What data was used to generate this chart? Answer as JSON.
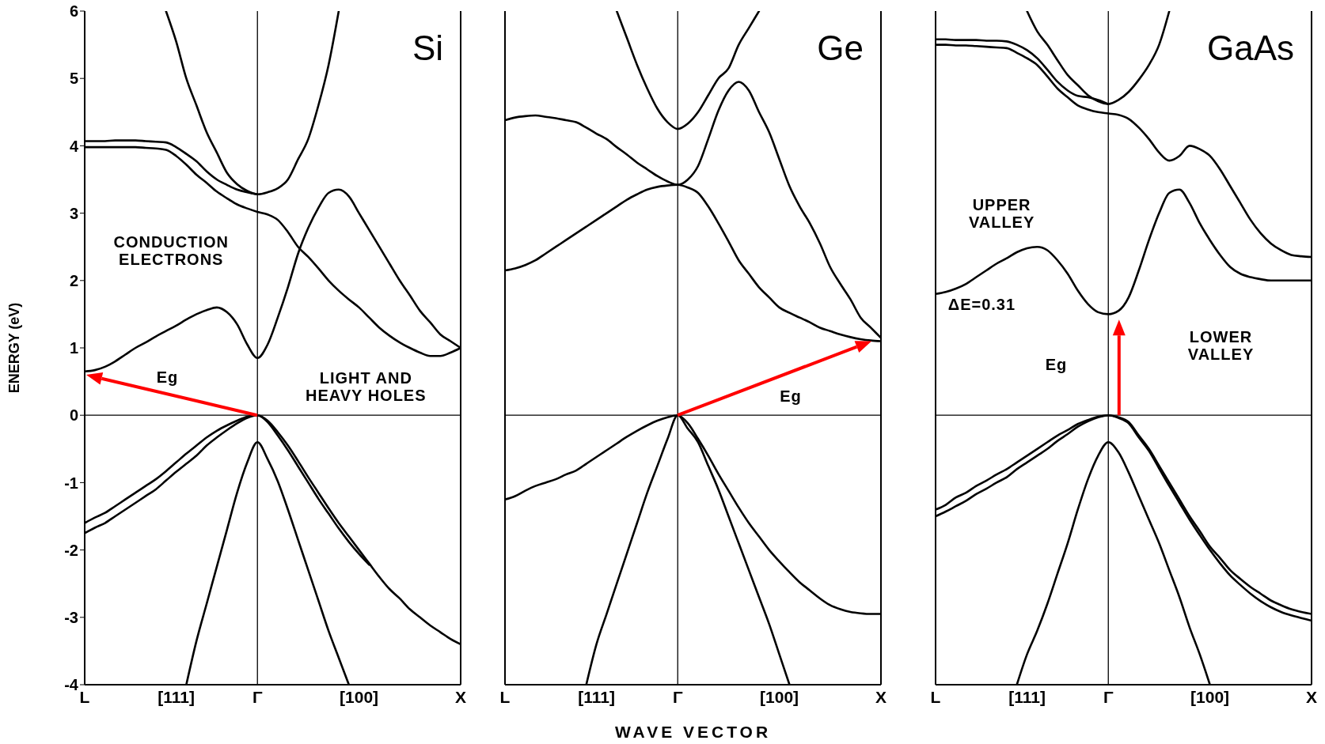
{
  "chart_data": [
    {
      "type": "line",
      "title": "Si",
      "ylabel": "ENERGY (eV)",
      "ylim": [
        -4,
        6
      ],
      "tick_labels": "xy",
      "categories": [
        "L",
        null,
        null,
        null,
        null,
        null,
        null,
        null,
        null,
        "[111]",
        null,
        null,
        null,
        null,
        null,
        null,
        null,
        "Γ",
        null,
        null,
        null,
        null,
        null,
        null,
        null,
        null,
        null,
        "[100]",
        null,
        null,
        null,
        null,
        null,
        null,
        null,
        null,
        null,
        "X"
      ],
      "yticks": [
        -4,
        -3,
        -2,
        -1,
        0,
        1,
        2,
        3,
        4,
        5,
        6
      ],
      "ref_lines": [
        {
          "axis": "y",
          "value": 0,
          "color": "#000000"
        },
        {
          "axis": "x",
          "value": "Γ",
          "color": "#000000"
        }
      ],
      "annotations": [
        "CONDUCTION\nELECTRONS",
        "Eg",
        "LIGHT AND\nHEAVY HOLES"
      ],
      "series": [
        {
          "color": "#000000",
          "values": [
            null,
            null,
            null,
            null,
            null,
            null,
            null,
            null,
            6,
            5.55,
            5.0,
            4.6,
            4.2,
            3.9,
            3.6,
            3.43,
            3.33,
            3.28,
            3.31,
            3.37,
            3.5,
            3.8,
            4.1,
            4.6,
            5.2,
            6,
            null,
            null,
            null,
            null,
            null,
            null,
            null,
            null,
            null,
            null,
            null,
            null
          ]
        },
        {
          "color": "#000000",
          "values": [
            4.07,
            4.07,
            4.07,
            4.08,
            4.08,
            4.08,
            4.07,
            4.06,
            4.05,
            3.98,
            3.88,
            3.77,
            3.62,
            3.5,
            3.42,
            3.35,
            3.31,
            3.28,
            null,
            null,
            null,
            null,
            null,
            null,
            null,
            null,
            null,
            null,
            null,
            null,
            null,
            null,
            null,
            null,
            null,
            null,
            null,
            null
          ]
        },
        {
          "color": "#000000",
          "values": [
            3.98,
            3.98,
            3.98,
            3.98,
            3.98,
            3.98,
            3.97,
            3.96,
            3.94,
            3.85,
            3.72,
            3.57,
            3.45,
            3.32,
            3.22,
            3.13,
            3.07,
            3.02,
            2.98,
            2.9,
            2.72,
            2.5,
            2.35,
            2.18,
            2.0,
            1.85,
            1.72,
            1.6,
            1.45,
            1.3,
            1.18,
            1.08,
            1.0,
            0.93,
            0.88,
            0.88,
            0.93,
            1.0
          ]
        },
        {
          "color": "#000000",
          "values": [
            0.65,
            0.67,
            0.72,
            0.8,
            0.9,
            1.0,
            1.08,
            1.17,
            1.25,
            1.33,
            1.42,
            1.5,
            1.56,
            1.6,
            1.53,
            1.35,
            1.05,
            0.85,
            1.05,
            1.45,
            1.9,
            2.4,
            2.78,
            3.08,
            3.3,
            3.35,
            3.25,
            3.0,
            2.75,
            2.5,
            2.25,
            2.0,
            1.78,
            1.55,
            1.38,
            1.2,
            1.1,
            1.0
          ]
        },
        {
          "color": "#000000",
          "values": [
            -1.6,
            -1.52,
            -1.45,
            -1.35,
            -1.25,
            -1.15,
            -1.05,
            -0.95,
            -0.83,
            -0.7,
            -0.57,
            -0.45,
            -0.33,
            -0.23,
            -0.15,
            -0.08,
            -0.02,
            0,
            -0.08,
            -0.25,
            -0.45,
            -0.68,
            -0.92,
            -1.15,
            -1.38,
            -1.6,
            -1.8,
            -2.0,
            -2.2,
            -2.4,
            -2.58,
            -2.72,
            -2.88,
            -3.0,
            -3.12,
            -3.22,
            -3.32,
            -3.4
          ]
        },
        {
          "color": "#000000",
          "values": [
            -1.75,
            -1.67,
            -1.6,
            -1.5,
            -1.4,
            -1.3,
            -1.2,
            -1.1,
            -0.97,
            -0.84,
            -0.72,
            -0.6,
            -0.45,
            -0.33,
            -0.22,
            -0.12,
            -0.04,
            0,
            -0.1,
            -0.3,
            -0.52,
            -0.76,
            -1.0,
            -1.24,
            -1.46,
            -1.68,
            -1.88,
            -2.06,
            -2.22,
            null,
            null,
            null,
            null,
            null,
            null,
            null,
            null,
            null
          ]
        },
        {
          "color": "#000000",
          "values": [
            null,
            null,
            null,
            null,
            null,
            null,
            null,
            null,
            null,
            null,
            -4,
            -3.35,
            -2.8,
            -2.25,
            -1.7,
            -1.15,
            -0.7,
            -0.4,
            -0.65,
            -0.98,
            -1.4,
            -1.85,
            -2.3,
            -2.75,
            -3.2,
            -3.6,
            -4,
            null,
            null,
            null,
            null,
            null,
            null,
            null,
            null,
            null,
            null,
            null
          ]
        }
      ]
    },
    {
      "type": "line",
      "title": "Ge",
      "xlabel": "WAVE VECTOR",
      "ylim": [
        -4,
        6
      ],
      "tick_labels": "x",
      "categories": [
        "L",
        null,
        null,
        null,
        null,
        null,
        null,
        null,
        null,
        "[111]",
        null,
        null,
        null,
        null,
        null,
        null,
        null,
        "Γ",
        null,
        null,
        null,
        null,
        null,
        null,
        null,
        null,
        null,
        "[100]",
        null,
        null,
        null,
        null,
        null,
        null,
        null,
        null,
        null,
        "X"
      ],
      "yticks": [
        -4,
        -3,
        -2,
        -1,
        0,
        1,
        2,
        3,
        4,
        5,
        6
      ],
      "ref_lines": [
        {
          "axis": "y",
          "value": 0,
          "color": "#000000"
        },
        {
          "axis": "x",
          "value": "Γ",
          "color": "#000000"
        }
      ],
      "annotations": [
        "Eg"
      ],
      "series": [
        {
          "color": "#000000",
          "values": [
            null,
            null,
            null,
            null,
            null,
            null,
            null,
            null,
            null,
            null,
            null,
            6,
            5.6,
            5.2,
            4.85,
            4.55,
            4.35,
            4.25,
            4.33,
            4.5,
            4.75,
            5.0,
            5.15,
            5.5,
            5.75,
            6,
            null,
            null,
            null,
            null,
            null,
            null,
            null,
            null,
            null,
            null,
            null,
            null
          ]
        },
        {
          "color": "#000000",
          "values": [
            4.38,
            4.42,
            4.44,
            4.45,
            4.43,
            4.41,
            4.38,
            4.35,
            4.27,
            4.18,
            4.1,
            3.98,
            3.87,
            3.75,
            3.65,
            3.55,
            3.47,
            3.42,
            3.5,
            3.7,
            4.1,
            4.52,
            4.82,
            4.95,
            4.82,
            4.5,
            4.2,
            3.8,
            3.4,
            3.1,
            2.85,
            2.55,
            2.2,
            1.95,
            1.72,
            1.45,
            1.3,
            1.15
          ]
        },
        {
          "color": "#000000",
          "values": [
            2.15,
            2.18,
            2.23,
            2.3,
            2.4,
            2.5,
            2.6,
            2.7,
            2.8,
            2.9,
            3.0,
            3.1,
            3.2,
            3.28,
            3.35,
            3.39,
            3.41,
            3.42,
            3.38,
            3.3,
            3.1,
            2.85,
            2.58,
            2.3,
            2.1,
            1.9,
            1.75,
            1.6,
            1.52,
            1.45,
            1.38,
            1.3,
            1.25,
            1.2,
            1.16,
            1.13,
            1.11,
            1.1
          ]
        },
        {
          "color": "#000000",
          "values": [
            -1.25,
            -1.2,
            -1.12,
            -1.05,
            -1.0,
            -0.95,
            -0.88,
            -0.82,
            -0.72,
            -0.62,
            -0.52,
            -0.42,
            -0.32,
            -0.23,
            -0.15,
            -0.08,
            -0.03,
            0,
            -0.12,
            -0.35,
            -0.6,
            -0.87,
            -1.12,
            -1.37,
            -1.6,
            -1.8,
            -2.0,
            -2.17,
            -2.33,
            -2.48,
            -2.6,
            -2.72,
            -2.82,
            -2.88,
            -2.92,
            -2.94,
            -2.95,
            -2.95
          ]
        },
        {
          "color": "#000000",
          "values": [
            null,
            null,
            null,
            null,
            null,
            null,
            null,
            null,
            -4,
            -3.4,
            -2.95,
            -2.5,
            -2.05,
            -1.6,
            -1.15,
            -0.75,
            -0.35,
            0,
            -0.2,
            -0.4,
            -0.75,
            -1.1,
            -1.5,
            -1.9,
            -2.3,
            -2.7,
            -3.1,
            -3.55,
            -4,
            null,
            null,
            null,
            null,
            null,
            null,
            null,
            null,
            null
          ]
        }
      ]
    },
    {
      "type": "line",
      "title": "GaAs",
      "ylim": [
        -4,
        6
      ],
      "tick_labels": "x",
      "categories": [
        "L",
        null,
        null,
        null,
        null,
        null,
        null,
        null,
        null,
        "[111]",
        null,
        null,
        null,
        null,
        null,
        null,
        null,
        "Γ",
        null,
        null,
        null,
        null,
        null,
        null,
        null,
        null,
        null,
        "[100]",
        null,
        null,
        null,
        null,
        null,
        null,
        null,
        null,
        null,
        "X"
      ],
      "yticks": [
        -4,
        -3,
        -2,
        -1,
        0,
        1,
        2,
        3,
        4,
        5,
        6
      ],
      "ref_lines": [
        {
          "axis": "y",
          "value": 0,
          "color": "#000000"
        },
        {
          "axis": "x",
          "value": "Γ",
          "color": "#000000"
        }
      ],
      "annotations": [
        "UPPER\nVALLEY",
        "ΔE=0.31",
        "Eg",
        "LOWER\nVALLEY"
      ],
      "series": [
        {
          "color": "#000000",
          "values": [
            null,
            null,
            null,
            null,
            null,
            null,
            null,
            null,
            null,
            6,
            5.7,
            5.5,
            5.27,
            5.05,
            4.9,
            4.75,
            4.66,
            4.62,
            4.68,
            4.8,
            4.98,
            5.2,
            5.5,
            6,
            null,
            null,
            null,
            null,
            null,
            null,
            null,
            null,
            null,
            null,
            null,
            null,
            null,
            null
          ]
        },
        {
          "color": "#000000",
          "values": [
            5.58,
            5.58,
            5.57,
            5.57,
            5.57,
            5.56,
            5.56,
            5.55,
            5.5,
            5.42,
            5.3,
            5.13,
            4.95,
            4.82,
            4.74,
            4.72,
            4.68,
            4.62,
            null,
            null,
            null,
            null,
            null,
            null,
            null,
            null,
            null,
            null,
            null,
            null,
            null,
            null,
            null,
            null,
            null,
            null,
            null,
            null
          ]
        },
        {
          "color": "#000000",
          "values": [
            5.5,
            5.5,
            5.49,
            5.49,
            5.48,
            5.47,
            5.46,
            5.45,
            5.38,
            5.3,
            5.2,
            5.03,
            4.85,
            4.72,
            4.6,
            4.54,
            4.5,
            4.48,
            4.46,
            4.4,
            4.27,
            4.1,
            3.9,
            3.78,
            3.85,
            4.0,
            3.95,
            3.85,
            3.65,
            3.4,
            3.15,
            2.9,
            2.7,
            2.55,
            2.45,
            2.38,
            2.36,
            2.35
          ]
        },
        {
          "color": "#000000",
          "values": [
            1.8,
            1.83,
            1.88,
            1.95,
            2.05,
            2.15,
            2.25,
            2.33,
            2.42,
            2.48,
            2.5,
            2.45,
            2.3,
            2.1,
            1.85,
            1.65,
            1.53,
            1.5,
            1.55,
            1.75,
            2.15,
            2.6,
            3.0,
            3.3,
            3.35,
            3.15,
            2.85,
            2.6,
            2.38,
            2.2,
            2.1,
            2.05,
            2.02,
            2.0,
            2.0,
            2.0,
            2.0,
            2.0
          ]
        },
        {
          "color": "#000000",
          "values": [
            -1.4,
            -1.33,
            -1.22,
            -1.15,
            -1.05,
            -0.97,
            -0.88,
            -0.8,
            -0.7,
            -0.6,
            -0.5,
            -0.4,
            -0.3,
            -0.22,
            -0.13,
            -0.07,
            -0.02,
            0,
            -0.03,
            -0.1,
            -0.3,
            -0.5,
            -0.75,
            -1.0,
            -1.25,
            -1.5,
            -1.72,
            -1.95,
            -2.12,
            -2.3,
            -2.43,
            -2.55,
            -2.65,
            -2.75,
            -2.82,
            -2.88,
            -2.92,
            -2.95
          ]
        },
        {
          "color": "#000000",
          "values": [
            -1.5,
            -1.43,
            -1.35,
            -1.27,
            -1.17,
            -1.09,
            -1.0,
            -0.92,
            -0.8,
            -0.7,
            -0.6,
            -0.5,
            -0.38,
            -0.28,
            -0.17,
            -0.09,
            -0.03,
            0,
            -0.04,
            -0.12,
            -0.33,
            -0.53,
            -0.79,
            -1.05,
            -1.3,
            -1.55,
            -1.78,
            -2.0,
            -2.2,
            -2.38,
            -2.52,
            -2.65,
            -2.76,
            -2.85,
            -2.92,
            -2.97,
            -3.01,
            -3.05
          ]
        },
        {
          "color": "#000000",
          "values": [
            null,
            null,
            null,
            null,
            null,
            null,
            null,
            null,
            -4,
            -3.55,
            -3.2,
            -2.8,
            -2.35,
            -1.9,
            -1.4,
            -0.95,
            -0.6,
            -0.4,
            -0.55,
            -0.85,
            -1.2,
            -1.55,
            -1.9,
            -2.3,
            -2.7,
            -3.15,
            -3.55,
            -4,
            null,
            null,
            null,
            null,
            null,
            null,
            null,
            null,
            null,
            null
          ]
        }
      ]
    }
  ]
}
